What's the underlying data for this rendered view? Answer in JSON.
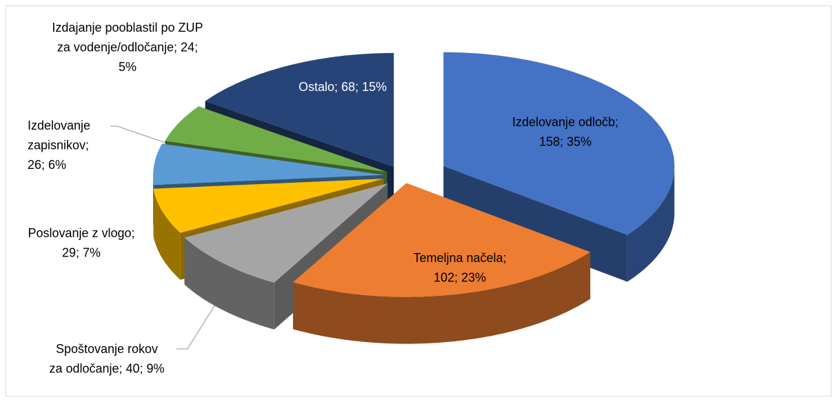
{
  "chart_data": {
    "type": "pie3d",
    "categories": [
      "Izdelovanje odločb",
      "Temeljna načela",
      "Spoštovanje rokov za odločanje",
      "Poslovanje z vlogo",
      "Izdelovanje zapisnikov",
      "Izdajanje pooblastil po ZUP za vodenje/odločanje",
      "Ostalo"
    ],
    "values": [
      158,
      102,
      40,
      29,
      26,
      24,
      68
    ],
    "value_labels": [
      [
        "Izdelovanje odločb;",
        "158; 35%"
      ],
      [
        "Temeljna načela;",
        "102; 23%"
      ],
      [
        "Spoštovanje rokov",
        "za odločanje; 40; 9%"
      ],
      [
        "Poslovanje z vlogo;",
        "29; 7%"
      ],
      [
        "Izdelovanje",
        "zapisnikov;",
        "26; 6%"
      ],
      [
        "Izdajanje pooblastil po ZUP",
        "za vodenje/odločanje; 24;",
        "5%"
      ],
      [
        "Ostalo; 68; 15%"
      ]
    ],
    "colors": [
      "#4472c4",
      "#ed7d31",
      "#a5a5a5",
      "#ffc000",
      "#5b9bd5",
      "#70ad47",
      "#264478"
    ]
  }
}
